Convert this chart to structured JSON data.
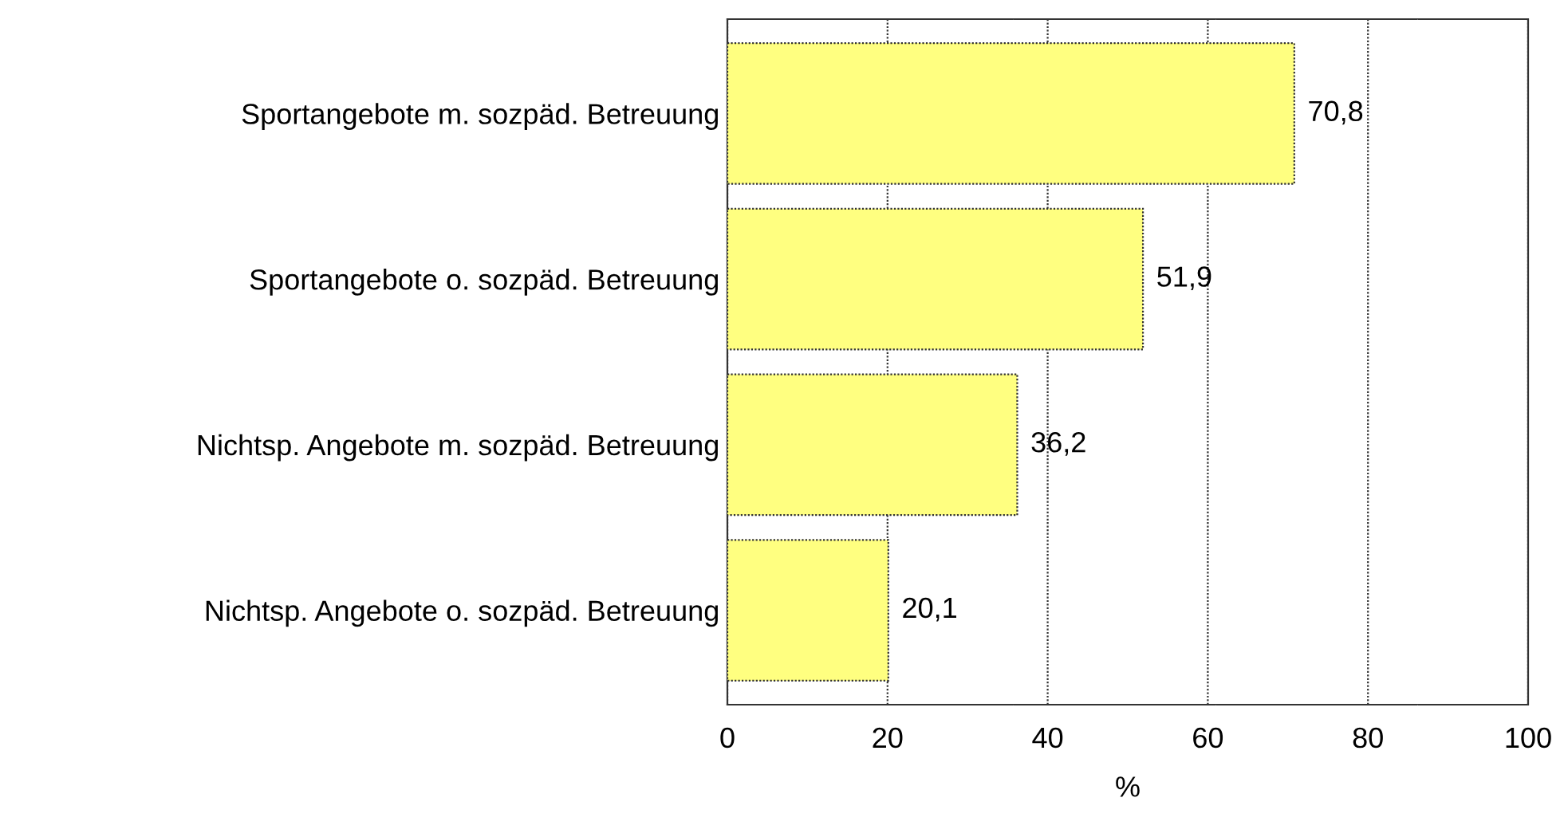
{
  "chart_data": {
    "type": "bar",
    "orientation": "horizontal",
    "categories": [
      "Sportangebote m. sozpäd. Betreuung",
      "Sportangebote o. sozpäd. Betreuung",
      "Nichtsp. Angebote m. sozpäd. Betreuung",
      "Nichtsp. Angebote o. sozpäd. Betreuung"
    ],
    "values": [
      70.8,
      51.9,
      36.2,
      20.1
    ],
    "value_labels": [
      "70,8",
      "51,9",
      "36,2",
      "20,1"
    ],
    "color": "#ffff80",
    "xlabel": "%",
    "xlim": [
      0,
      100
    ],
    "xticks": [
      0,
      20,
      40,
      60,
      80,
      100
    ],
    "grid": "x"
  }
}
